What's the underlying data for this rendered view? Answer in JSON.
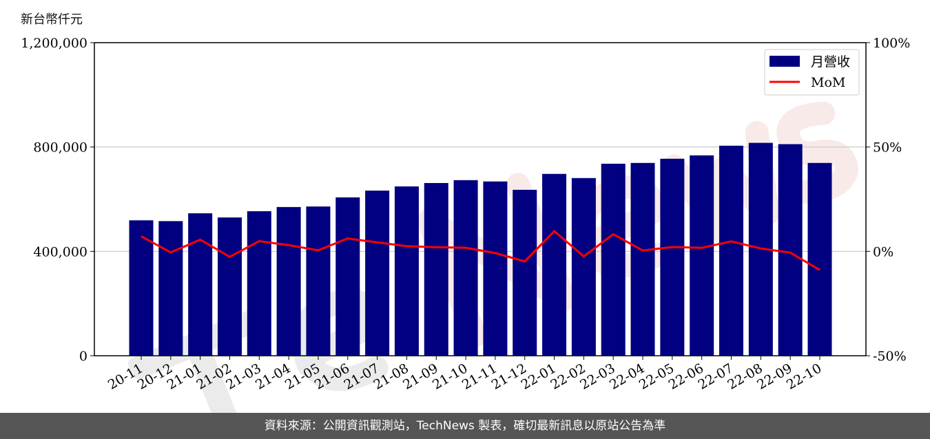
{
  "chart_data": {
    "type": "bar",
    "unit_label": "新台幣仟元",
    "watermark": "TechNews",
    "categories": [
      "20-11",
      "20-12",
      "21-01",
      "21-02",
      "21-03",
      "21-04",
      "21-05",
      "21-06",
      "21-07",
      "21-08",
      "21-09",
      "21-10",
      "21-11",
      "21-12",
      "22-01",
      "22-02",
      "22-03",
      "22-04",
      "22-05",
      "22-06",
      "22-07",
      "22-08",
      "22-09",
      "22-10"
    ],
    "series": [
      {
        "name": "月營收",
        "type": "bar",
        "axis": "left",
        "color": "#000080",
        "values": [
          519000,
          516000,
          546000,
          530000,
          554000,
          570000,
          572000,
          607000,
          633000,
          649000,
          662000,
          673000,
          668000,
          636000,
          697000,
          681000,
          736000,
          739000,
          755000,
          768000,
          805000,
          816000,
          811000,
          739000
        ]
      },
      {
        "name": "MoM",
        "type": "line",
        "axis": "right",
        "color": "#ff0000",
        "values": [
          7.2,
          -0.5,
          5.6,
          -2.6,
          4.9,
          3.0,
          0.5,
          6.2,
          4.3,
          2.5,
          2.0,
          1.7,
          -0.8,
          -4.8,
          9.7,
          -2.4,
          8.2,
          0.4,
          2.1,
          1.7,
          4.8,
          1.4,
          -0.6,
          -8.9
        ]
      }
    ],
    "left_axis": {
      "ylim": [
        0,
        1200000
      ],
      "ticks": [
        0,
        400000,
        800000,
        1200000
      ],
      "tick_labels": [
        "0",
        "400,000",
        "800,000",
        "1,200,000"
      ]
    },
    "right_axis": {
      "ylim": [
        -50,
        100
      ],
      "ticks": [
        -50,
        0,
        50,
        100
      ],
      "tick_labels": [
        "-50%",
        "0%",
        "50%",
        "100%"
      ]
    },
    "grid": "horizontal",
    "legend": "top-right"
  },
  "footer": "資料來源：公開資訊觀測站，TechNews 製表，確切最新訊息以原站公告為準"
}
